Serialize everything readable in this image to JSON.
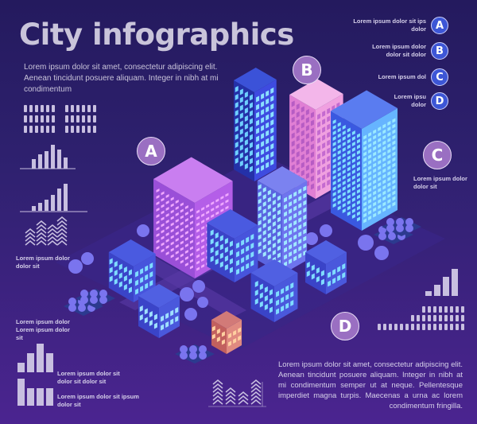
{
  "header": {
    "title": "City infographics",
    "intro": "Lorem ipsum dolor sit amet, consectetur adipiscing elit. Aenean tincidunt posuere aliquam. Integer in nibh at mi condimentum"
  },
  "legend": [
    {
      "letter": "A",
      "text": "Lorem ipsum dolor sit ips dolor"
    },
    {
      "letter": "B",
      "text": "Lorem ipsum dolor dolor sit dolor"
    },
    {
      "letter": "C",
      "text": "Lorem ipsum dol"
    },
    {
      "letter": "D",
      "text": "Lorem ipsu dolor"
    }
  ],
  "markers": {
    "a": "A",
    "b": "B",
    "c": "C",
    "d": "D"
  },
  "captions": {
    "c_caption": "Lorem ipsum dolor dolor sit",
    "left_1": "Lorem ipsum dolor dolor sit",
    "left_2": "Lorem ipsum dolor Lorem ipsum dolor sit",
    "left_3": "Lorem ipsum dolor sit dolor sit dolor sit",
    "left_4": "Lorem ipsum dolor sit ipsum dolor sit"
  },
  "footer": {
    "text": "Lorem ipsum dolor sit amet, consectetur adipiscing elit. Aenean tincidunt posuere aliquam. Integer in nibh at mi condimentum semper ut at neque. Pellentesque imperdiet magna turpis. Maecenas a urna ac lorem condimentum fringilla."
  },
  "colors": {
    "badge_small": "#3d56d6",
    "badge_large": "#9a6fc2",
    "text": "#d6d0ea",
    "background": "#2f2170"
  }
}
